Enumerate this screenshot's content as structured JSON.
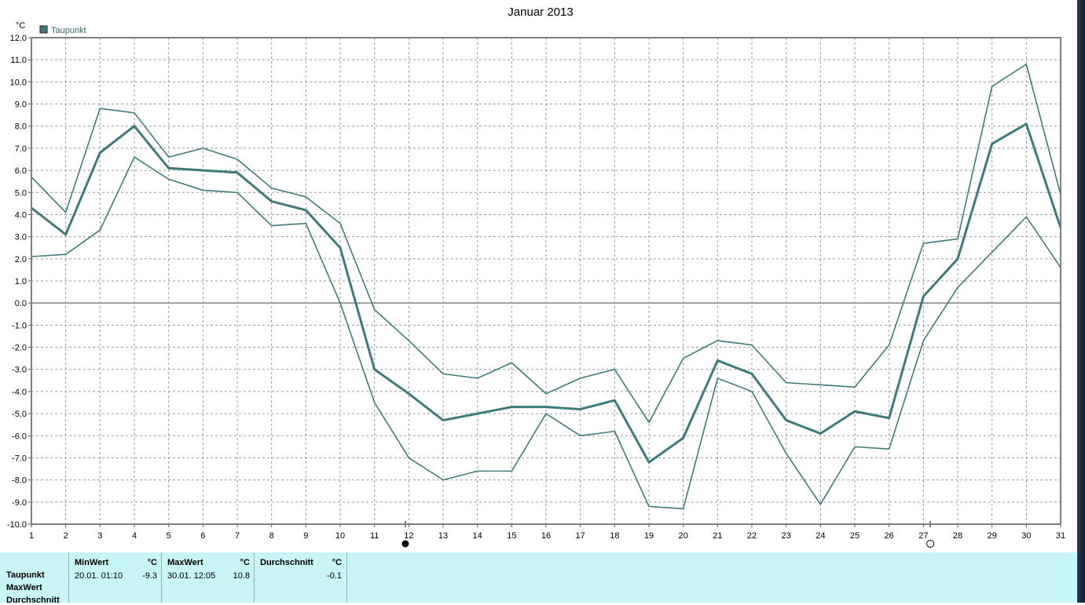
{
  "chart_data": {
    "type": "line",
    "title": "Januar 2013",
    "ylabel": "°C",
    "legend": "Taupunkt",
    "legend_color": "#3f7b7b",
    "line_color": "#3f7b7b",
    "grid": true,
    "ylim": [
      -10.0,
      12.0
    ],
    "xlim": [
      1,
      31
    ],
    "x": [
      1,
      2,
      3,
      4,
      5,
      6,
      7,
      8,
      9,
      10,
      11,
      12,
      13,
      14,
      15,
      16,
      17,
      18,
      19,
      20,
      21,
      22,
      23,
      24,
      25,
      26,
      27,
      28,
      29,
      30,
      31
    ],
    "x_tick_labels": [
      "1",
      "2",
      "3",
      "4",
      "5",
      "6",
      "7",
      "8",
      "9",
      "10",
      "11",
      "12",
      "13",
      "14",
      "15",
      "16",
      "17",
      "18",
      "19",
      "20",
      "21",
      "22",
      "23",
      "24",
      "25",
      "26",
      "27",
      "28",
      "29",
      "30",
      "31"
    ],
    "y_tick_labels": [
      "12.0",
      "11.0",
      "10.0",
      "9.0",
      "8.0",
      "7.0",
      "6.0",
      "5.0",
      "4.0",
      "3.0",
      "2.0",
      "1.0",
      "0.0",
      "-1.0",
      "-2.0",
      "-3.0",
      "-4.0",
      "-5.0",
      "-6.0",
      "-7.0",
      "-8.0",
      "-9.0",
      "-10.0"
    ],
    "series": [
      {
        "role": "max",
        "values": [
          5.7,
          4.1,
          8.8,
          8.6,
          6.6,
          7.0,
          6.5,
          5.2,
          4.8,
          3.6,
          -0.3,
          -1.7,
          -3.2,
          -3.4,
          -2.7,
          -4.1,
          -3.4,
          -3.0,
          -5.4,
          -2.5,
          -1.7,
          -1.9,
          -3.6,
          -3.7,
          -3.8,
          -1.9,
          2.7,
          2.9,
          9.8,
          10.8,
          4.9
        ]
      },
      {
        "role": "average",
        "values": [
          4.3,
          3.1,
          6.8,
          8.0,
          6.1,
          6.0,
          5.9,
          4.6,
          4.2,
          2.5,
          -3.0,
          -4.1,
          -5.3,
          -5.0,
          -4.7,
          -4.7,
          -4.8,
          -4.4,
          -7.2,
          -6.1,
          -2.6,
          -3.2,
          -5.3,
          -5.9,
          -4.9,
          -5.2,
          0.3,
          2.0,
          7.2,
          8.1,
          3.4
        ]
      },
      {
        "role": "min",
        "values": [
          2.1,
          2.2,
          3.3,
          6.6,
          5.6,
          5.1,
          5.0,
          3.5,
          3.6,
          0.0,
          -4.5,
          -7.0,
          -8.0,
          -7.6,
          -7.6,
          -5.0,
          -6.0,
          -5.8,
          -9.2,
          -9.3,
          -3.4,
          -4.0,
          -6.8,
          -9.1,
          -6.5,
          -6.6,
          -1.7,
          0.7,
          2.3,
          3.9,
          1.6
        ]
      }
    ],
    "markers": [
      {
        "x": 11.9,
        "symbol": "full-moon"
      },
      {
        "x": 27.2,
        "symbol": "new-moon"
      }
    ]
  },
  "stats": {
    "columns": [
      {
        "header": "MinWert",
        "unit": "°C",
        "date": "20.01.  01:10",
        "value": "-9.3"
      },
      {
        "header": "MaxWert",
        "unit": "°C",
        "date": "30.01.  12:05",
        "value": "10.8"
      },
      {
        "header": "Durchschnitt",
        "unit": "°C",
        "date": "",
        "value": "-0.1"
      }
    ],
    "row_labels": [
      "Taupunkt",
      "MaxWert",
      "Durchschnitt"
    ]
  }
}
